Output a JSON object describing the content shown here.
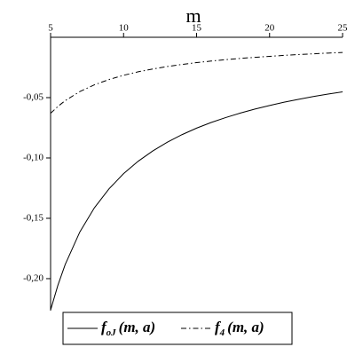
{
  "chart_data": {
    "type": "line",
    "x_label": "m",
    "x": [
      5,
      5.5,
      6,
      7,
      8,
      9,
      10,
      11,
      12,
      13,
      14,
      15,
      16,
      17,
      18,
      19,
      20,
      21,
      22,
      23,
      24,
      25
    ],
    "series": [
      {
        "name": "f",
        "subscript": "oJ",
        "args": "(m, a)",
        "color": "#000000",
        "dash": "solid",
        "values": [
          -0.226,
          -0.2055,
          -0.1883,
          -0.1614,
          -0.1413,
          -0.1256,
          -0.113,
          -0.1027,
          -0.0942,
          -0.0869,
          -0.0807,
          -0.0753,
          -0.0706,
          -0.0665,
          -0.0628,
          -0.0595,
          -0.0565,
          -0.0538,
          -0.0514,
          -0.0491,
          -0.0471,
          -0.0452
        ]
      },
      {
        "name": "f",
        "subscript": "4",
        "args": "(m, a)",
        "color": "#000000",
        "dash": "dashdot",
        "values": [
          -0.063,
          -0.0573,
          -0.0525,
          -0.045,
          -0.0394,
          -0.035,
          -0.0315,
          -0.0286,
          -0.0263,
          -0.0242,
          -0.0225,
          -0.021,
          -0.0197,
          -0.0185,
          -0.0175,
          -0.0166,
          -0.0158,
          -0.015,
          -0.0143,
          -0.0137,
          -0.0131,
          -0.0126
        ]
      }
    ],
    "xlim": [
      5,
      25
    ],
    "xticks": [
      5,
      10,
      15,
      20,
      25
    ],
    "ylim": [
      -0.2265,
      0
    ],
    "yticks": [
      {
        "value": -0.05,
        "label": "-0,05"
      },
      {
        "value": -0.1,
        "label": "-0,10"
      },
      {
        "value": -0.15,
        "label": "-0,15"
      },
      {
        "value": -0.2,
        "label": "-0,20"
      }
    ],
    "grid": false
  }
}
